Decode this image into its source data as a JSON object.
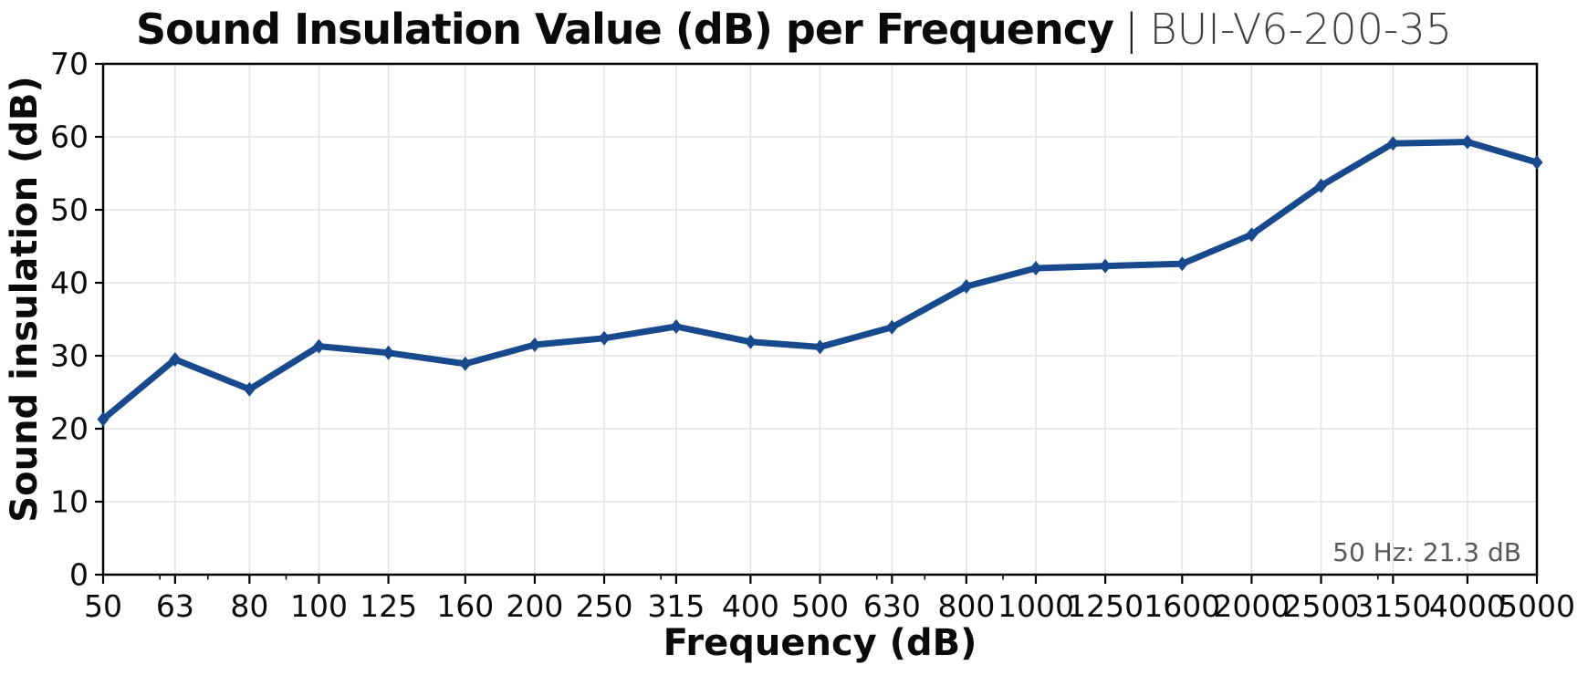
{
  "title": {
    "main": "Sound Insulation Value (dB) per Frequency",
    "separator": "|",
    "spec_id": "BUI-V6-200-35"
  },
  "annotation": {
    "label": "50 Hz: 21.3 dB"
  },
  "chart_data": {
    "type": "line",
    "title": "Sound Insulation Value (dB) per Frequency | BUI-V6-200-35",
    "xlabel": "Frequency (dB)",
    "ylabel": "Sound insulation (dB)",
    "x_scale": "log",
    "categories": [
      50,
      63,
      80,
      100,
      125,
      160,
      200,
      250,
      315,
      400,
      500,
      630,
      800,
      1000,
      1250,
      1600,
      2000,
      2500,
      3150,
      4000,
      5000
    ],
    "values": [
      21.3,
      29.5,
      25.4,
      31.3,
      30.4,
      28.9,
      31.5,
      32.4,
      34.0,
      31.9,
      31.2,
      33.9,
      39.5,
      42.0,
      42.3,
      42.6,
      46.6,
      53.3,
      59.1,
      59.3,
      56.5
    ],
    "minor_ticks": [
      60,
      70,
      90,
      300,
      600,
      700,
      900,
      3000
    ],
    "yticks": [
      0,
      10,
      20,
      30,
      40,
      50,
      60,
      70
    ],
    "ylim": [
      0,
      70
    ],
    "xlim": [
      50,
      5000
    ],
    "grid": true,
    "legend": "none",
    "annotation": {
      "text": "50 Hz: 21.3 dB",
      "position": "bottom-right"
    },
    "colors": {
      "line": "#17498c",
      "grid": "#e4e4e4",
      "frame": "#000000",
      "tick_label": "#0a0a0a",
      "annotation_text": "#595959"
    }
  }
}
